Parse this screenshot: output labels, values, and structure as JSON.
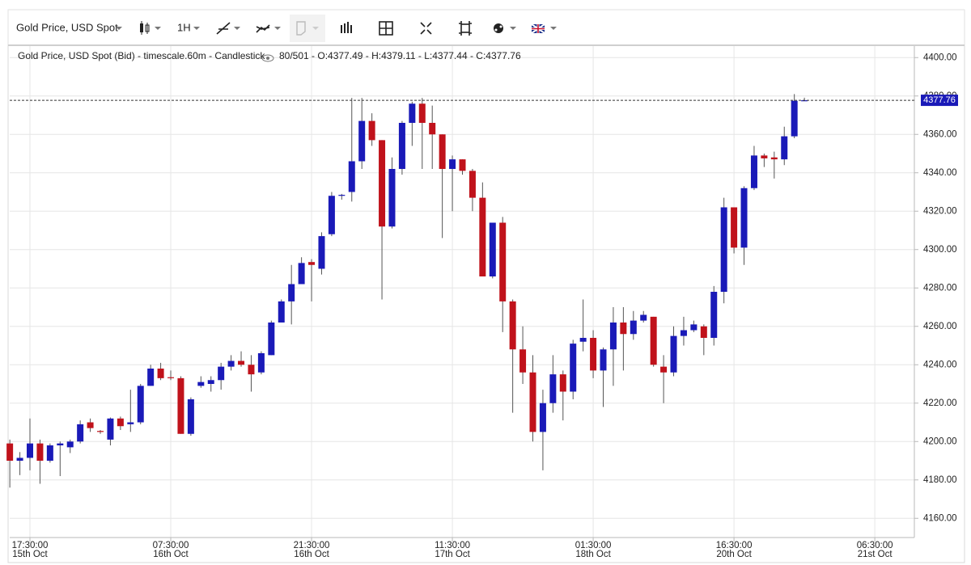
{
  "toolbar": {
    "symbol": "Gold Price, USD Spot",
    "interval": "1H"
  },
  "chart_data": {
    "type": "candlestick",
    "info": "Gold Price, USD Spot (Bid) - timescale.60m - Candlestick",
    "status": "80/501 - O:4377.49 - H:4379.11 - L:4377.44 - C:4377.76",
    "up_color": "#1a1ab8",
    "down_color": "#c0121b",
    "grid": true,
    "categories": [
      null,
      null,
      [
        "17:30:00",
        "15th Oct"
      ],
      null,
      null,
      null,
      null,
      null,
      null,
      null,
      null,
      null,
      null,
      null,
      null,
      null,
      [
        "07:30:00",
        "16th Oct"
      ],
      null,
      null,
      null,
      null,
      null,
      null,
      null,
      null,
      null,
      null,
      null,
      null,
      null,
      [
        "21:30:00",
        "16th Oct"
      ],
      null,
      null,
      null,
      null,
      null,
      null,
      null,
      null,
      null,
      null,
      null,
      null,
      null,
      [
        "11:30:00",
        "17th Oct"
      ],
      null,
      null,
      null,
      null,
      null,
      null,
      null,
      null,
      null,
      null,
      null,
      null,
      null,
      [
        "01:30:00",
        "18th Oct"
      ],
      null,
      null,
      null,
      null,
      null,
      null,
      null,
      null,
      null,
      null,
      null,
      null,
      null,
      [
        "16:30:00",
        "20th Oct"
      ],
      null,
      null,
      null,
      null,
      null,
      null,
      null,
      null,
      null,
      null,
      null,
      null,
      null,
      [
        "06:30:00",
        "21st Oct"
      ],
      null,
      null,
      null
    ],
    "open": [
      4199,
      4190,
      4191.5,
      4199,
      4190,
      4198,
      4197,
      4200,
      4210,
      4205.5,
      4201,
      4212,
      4209,
      4210,
      4229,
      4238,
      4233.5,
      4233,
      4204,
      4229,
      4230,
      4232,
      4239,
      4242,
      4240,
      4236,
      4245,
      4262,
      4273,
      4282,
      4293.5,
      4290,
      4308,
      4328,
      4330,
      4346,
      4367,
      4357,
      4312,
      4342,
      4366,
      4376,
      4366,
      4360,
      4342,
      4347,
      4341,
      4327,
      4286,
      4314,
      4273,
      4248,
      4236,
      4205,
      4220,
      4235,
      4226,
      4252,
      4254,
      4237,
      4248,
      4262,
      4256,
      4263,
      4265,
      4239,
      4236,
      4255,
      4258,
      4260,
      4254,
      4278,
      4322,
      4301,
      4332,
      4349,
      4348,
      4347,
      4359,
      4377.49,
      null,
      null,
      null,
      null,
      null,
      null,
      null,
      null,
      null,
      null
    ],
    "high": [
      4201,
      4194.5,
      4212,
      4201,
      4199,
      4200,
      4201,
      4211,
      4212,
      4206,
      4212.5,
      4213,
      4227,
      4230,
      4240,
      4241,
      4237,
      4234,
      4223,
      4234,
      4234,
      4241,
      4245,
      4247,
      4245,
      4247,
      4263,
      4274,
      4292,
      4296,
      4295,
      4309,
      4330,
      4329,
      4379,
      4379,
      4371,
      4357,
      4348,
      4367,
      4377,
      4379,
      4375,
      4360,
      4349,
      4347,
      4342,
      4335,
      4314,
      4317,
      4274,
      4260,
      4245,
      4227,
      4245,
      4237,
      4253,
      4274,
      4258,
      4249,
      4270,
      4270,
      4268,
      4268,
      4265,
      4245,
      4260,
      4265,
      4263,
      4261,
      4281,
      4327,
      4322,
      4333,
      4354,
      4350,
      4351,
      4364,
      4381,
      4379.11,
      null,
      null,
      null,
      null,
      null,
      null,
      null,
      null,
      null,
      null
    ],
    "low": [
      4176,
      4182.5,
      4185,
      4178,
      4189,
      4182,
      4194,
      4199,
      4205,
      4204,
      4198,
      4206,
      4205,
      4209,
      4229,
      4232,
      4232,
      4204,
      4203,
      4228,
      4226,
      4227,
      4237,
      4239,
      4226,
      4235,
      4245,
      4262,
      4261,
      4282,
      4273,
      4287,
      4307,
      4326,
      4325,
      4342,
      4354,
      4274,
      4311,
      4339,
      4354,
      4342,
      4342,
      4306,
      4320,
      4339,
      4320,
      4286,
      4285,
      4257,
      4215,
      4230,
      4200,
      4185,
      4215,
      4211,
      4222,
      4247,
      4233,
      4218,
      4229,
      4237,
      4253,
      4262,
      4239,
      4220,
      4234,
      4250,
      4257,
      4245,
      4250,
      4272,
      4298,
      4292,
      4331,
      4343,
      4337,
      4344,
      4358,
      4377.44,
      null,
      null,
      null,
      null,
      null,
      null,
      null,
      null,
      null,
      null
    ],
    "close": [
      4190,
      4191.5,
      4199,
      4190,
      4198,
      4199,
      4200,
      4209,
      4207,
      4205,
      4212,
      4208,
      4210,
      4229,
      4238,
      4233,
      4233,
      4204,
      4222,
      4231,
      4232,
      4239,
      4242,
      4240,
      4235,
      4246,
      4262,
      4273,
      4282,
      4293,
      4292,
      4307,
      4328,
      4328.5,
      4346,
      4367,
      4357,
      4312,
      4342,
      4366,
      4376,
      4366,
      4360,
      4342,
      4347,
      4341,
      4327,
      4286,
      4314,
      4273,
      4248,
      4236,
      4205,
      4220,
      4235,
      4226,
      4251,
      4254,
      4237,
      4248,
      4262,
      4256,
      4263,
      4266,
      4240,
      4236,
      4255,
      4258,
      4261,
      4254,
      4278,
      4322,
      4301,
      4332,
      4349,
      4347.5,
      4347,
      4359,
      4377.5,
      4377.76,
      null,
      null,
      null,
      null,
      null,
      null,
      null,
      null,
      null,
      null
    ],
    "ylim": [
      4150,
      4406
    ],
    "yticks": [
      {
        "value": 4160,
        "label": "4160.00"
      },
      {
        "value": 4180,
        "label": "4180.00"
      },
      {
        "value": 4200,
        "label": "4200.00"
      },
      {
        "value": 4220,
        "label": "4220.00"
      },
      {
        "value": 4240,
        "label": "4240.00"
      },
      {
        "value": 4260,
        "label": "4260.00"
      },
      {
        "value": 4280,
        "label": "4280.00"
      },
      {
        "value": 4300,
        "label": "4300.00"
      },
      {
        "value": 4320,
        "label": "4320.00"
      },
      {
        "value": 4340,
        "label": "4340.00"
      },
      {
        "value": 4360,
        "label": "4360.00"
      },
      {
        "value": 4380,
        "label": "4380.00"
      },
      {
        "value": 4400,
        "label": "4400.00"
      }
    ]
  }
}
